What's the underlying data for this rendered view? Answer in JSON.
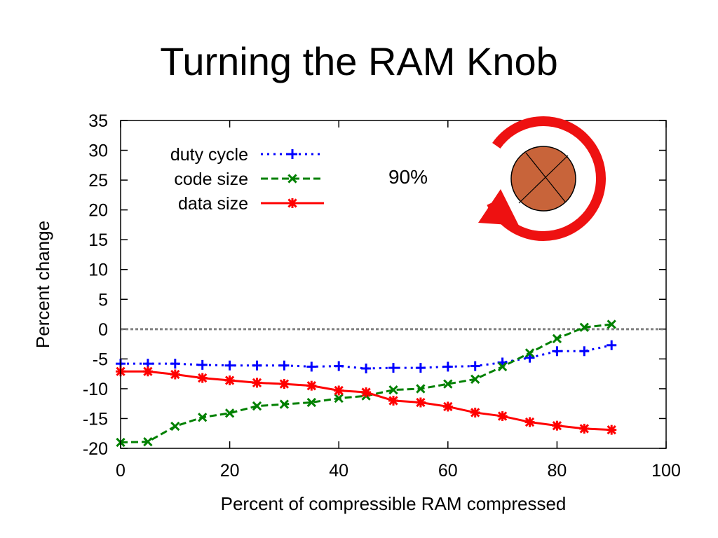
{
  "slide": {
    "title": "Turning the RAM Knob"
  },
  "knob": {
    "label": "90%",
    "arrow_color": "#ee1111",
    "knob_color": "#c8643a"
  },
  "chart_data": {
    "type": "line",
    "title": "",
    "xlabel": "Percent of compressible RAM compressed",
    "ylabel": "Percent change",
    "xlim": [
      0,
      100
    ],
    "ylim": [
      -20,
      35
    ],
    "xticks": [
      0,
      20,
      40,
      60,
      80,
      100
    ],
    "yticks": [
      -20,
      -15,
      -10,
      -5,
      0,
      5,
      10,
      15,
      20,
      25,
      30,
      35
    ],
    "grid": false,
    "legend_position": "top-left",
    "reference_line": {
      "y": 0,
      "style": "dotted",
      "color": "#808080"
    },
    "x": [
      0,
      5,
      10,
      15,
      20,
      25,
      30,
      35,
      40,
      45,
      50,
      55,
      60,
      65,
      70,
      75,
      80,
      85,
      90
    ],
    "series": [
      {
        "name": "duty cycle",
        "color": "#0000ff",
        "line_style": "dotted",
        "marker": "plus",
        "values": [
          -5.8,
          -5.8,
          -5.8,
          -6.0,
          -6.1,
          -6.1,
          -6.1,
          -6.3,
          -6.2,
          -6.6,
          -6.5,
          -6.5,
          -6.3,
          -6.2,
          -5.6,
          -4.8,
          -3.7,
          -3.7,
          -2.7
        ]
      },
      {
        "name": "code size",
        "color": "#008000",
        "line_style": "dashed",
        "marker": "x",
        "values": [
          -19.0,
          -18.9,
          -16.3,
          -14.8,
          -14.1,
          -12.9,
          -12.6,
          -12.3,
          -11.6,
          -11.2,
          -10.2,
          -10.0,
          -9.2,
          -8.4,
          -6.3,
          -4.0,
          -1.6,
          0.3,
          0.8
        ]
      },
      {
        "name": "data size",
        "color": "#ff0000",
        "line_style": "solid",
        "marker": "star",
        "values": [
          -7.1,
          -7.1,
          -7.6,
          -8.2,
          -8.6,
          -9.0,
          -9.2,
          -9.5,
          -10.3,
          -10.6,
          -12.0,
          -12.3,
          -13.0,
          -14.0,
          -14.6,
          -15.6,
          -16.2,
          -16.7,
          -16.9
        ]
      }
    ]
  }
}
